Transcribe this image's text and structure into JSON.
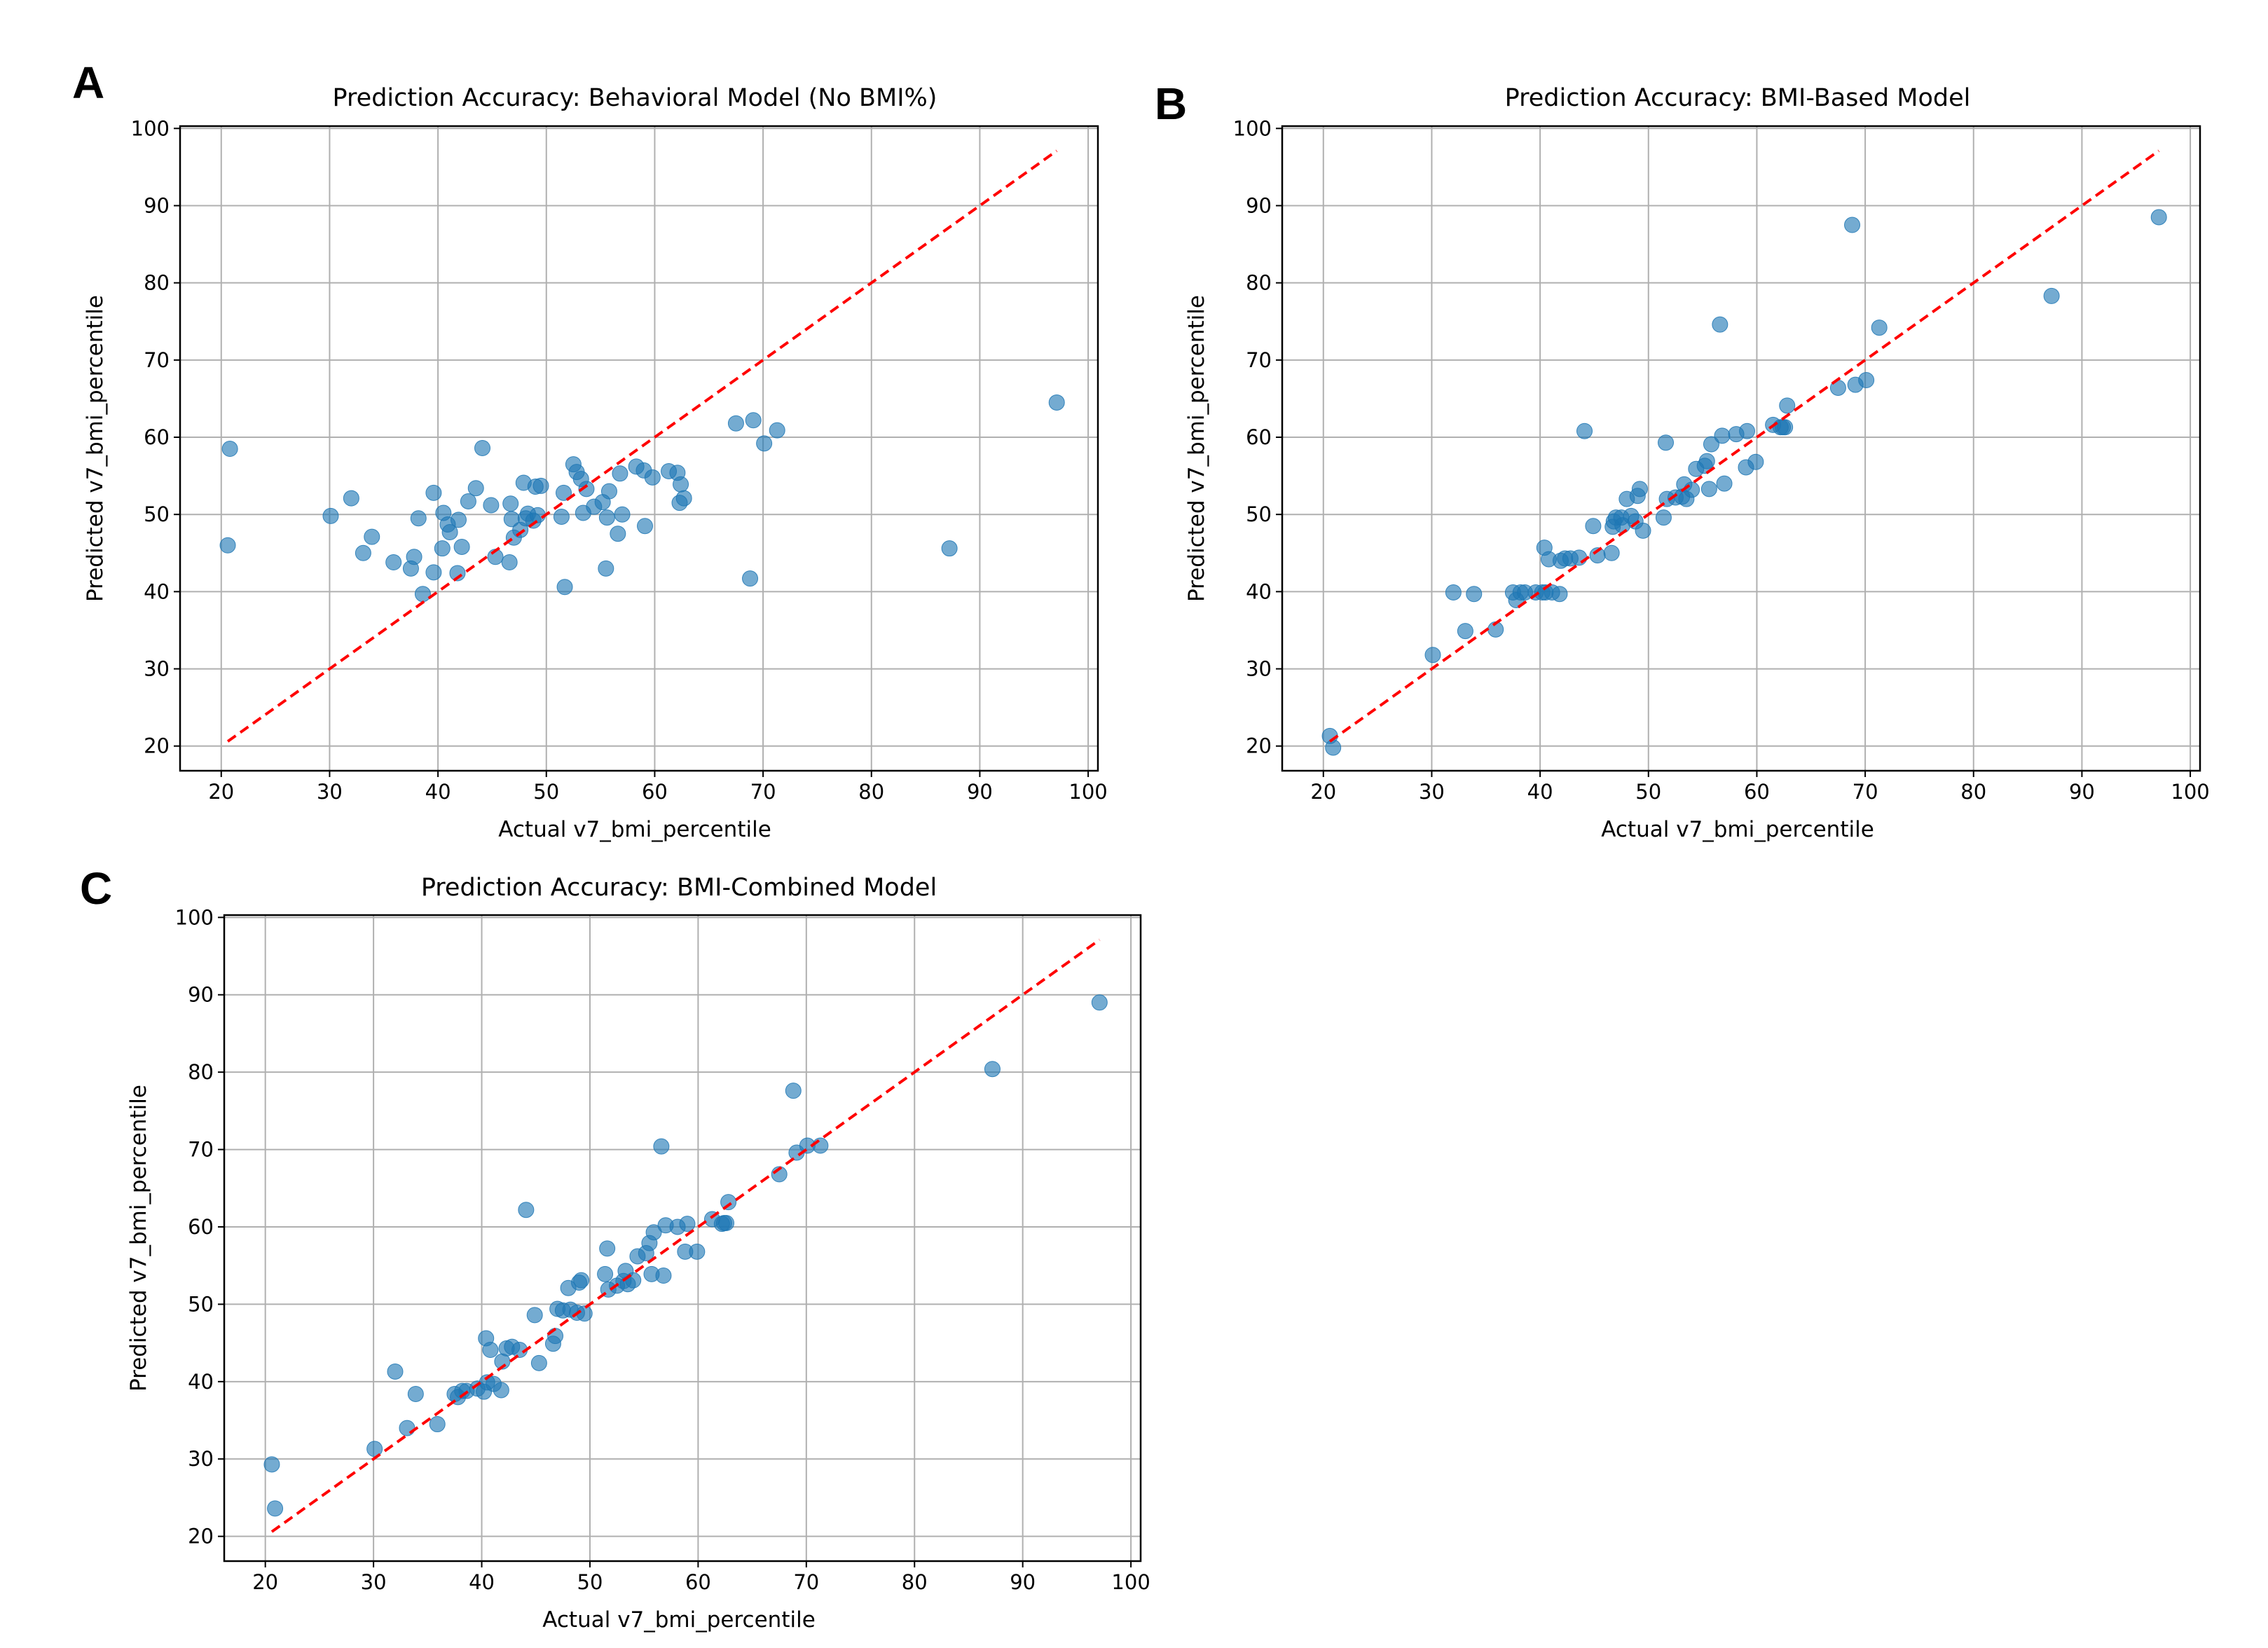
{
  "figure": {
    "panels": [
      {
        "letter": "A"
      },
      {
        "letter": "B"
      },
      {
        "letter": "C"
      }
    ]
  },
  "chart_data": [
    {
      "type": "scatter",
      "title": "Prediction Accuracy: Behavioral Model (No BMI%)",
      "xlabel": "Actual v7_bmi_percentile",
      "ylabel": "Predicted v7_bmi_percentile",
      "xlim": [
        16.2,
        100.9
      ],
      "ylim": [
        16.8,
        100.3
      ],
      "xticks": [
        20,
        30,
        40,
        50,
        60,
        70,
        80,
        90,
        100
      ],
      "yticks": [
        20,
        30,
        40,
        50,
        60,
        70,
        80,
        90,
        100
      ],
      "grid": true,
      "reference_line": {
        "style": "dashed",
        "color": "#ff0000",
        "from": [
          20.6,
          20.6
        ],
        "to": [
          97.1,
          97.1
        ]
      },
      "series": [
        {
          "color": "#1f77b4",
          "points": [
            [
              20.6,
              46.0
            ],
            [
              20.8,
              58.5
            ],
            [
              30.1,
              49.8
            ],
            [
              32.0,
              52.1
            ],
            [
              33.1,
              45.0
            ],
            [
              33.9,
              47.1
            ],
            [
              35.9,
              43.8
            ],
            [
              37.5,
              43.0
            ],
            [
              37.8,
              44.5
            ],
            [
              38.2,
              49.5
            ],
            [
              38.6,
              39.7
            ],
            [
              39.6,
              42.5
            ],
            [
              39.6,
              52.8
            ],
            [
              40.4,
              45.6
            ],
            [
              40.5,
              50.2
            ],
            [
              40.9,
              48.7
            ],
            [
              41.1,
              47.7
            ],
            [
              41.8,
              42.4
            ],
            [
              41.9,
              49.3
            ],
            [
              42.2,
              45.8
            ],
            [
              42.8,
              51.7
            ],
            [
              43.5,
              53.4
            ],
            [
              44.1,
              58.6
            ],
            [
              44.9,
              51.2
            ],
            [
              45.3,
              44.5
            ],
            [
              46.6,
              43.8
            ],
            [
              46.7,
              51.4
            ],
            [
              46.8,
              49.4
            ],
            [
              47.0,
              47.0
            ],
            [
              47.6,
              48.0
            ],
            [
              47.9,
              54.1
            ],
            [
              48.1,
              49.5
            ],
            [
              48.3,
              50.1
            ],
            [
              48.8,
              49.2
            ],
            [
              49.0,
              53.6
            ],
            [
              49.2,
              49.9
            ],
            [
              49.5,
              53.7
            ],
            [
              51.4,
              49.7
            ],
            [
              51.6,
              52.8
            ],
            [
              51.7,
              40.6
            ],
            [
              52.5,
              56.5
            ],
            [
              52.8,
              55.5
            ],
            [
              53.2,
              54.6
            ],
            [
              53.4,
              50.2
            ],
            [
              53.7,
              53.3
            ],
            [
              54.4,
              51.0
            ],
            [
              55.2,
              51.6
            ],
            [
              55.5,
              43.0
            ],
            [
              55.6,
              49.6
            ],
            [
              55.8,
              53.0
            ],
            [
              56.6,
              47.5
            ],
            [
              56.8,
              55.3
            ],
            [
              57.0,
              50.0
            ],
            [
              58.3,
              56.2
            ],
            [
              59.0,
              55.7
            ],
            [
              59.1,
              48.5
            ],
            [
              59.8,
              54.8
            ],
            [
              61.3,
              55.6
            ],
            [
              62.1,
              55.4
            ],
            [
              62.3,
              51.5
            ],
            [
              62.4,
              53.9
            ],
            [
              62.7,
              52.1
            ],
            [
              67.5,
              61.8
            ],
            [
              68.8,
              41.7
            ],
            [
              69.1,
              62.2
            ],
            [
              70.1,
              59.2
            ],
            [
              71.3,
              60.9
            ],
            [
              87.2,
              45.6
            ],
            [
              97.1,
              64.5
            ]
          ]
        }
      ]
    },
    {
      "type": "scatter",
      "title": "Prediction Accuracy: BMI-Based Model",
      "xlabel": "Actual v7_bmi_percentile",
      "ylabel": "Predicted v7_bmi_percentile",
      "xlim": [
        16.2,
        100.9
      ],
      "ylim": [
        16.8,
        100.3
      ],
      "xticks": [
        20,
        30,
        40,
        50,
        60,
        70,
        80,
        90,
        100
      ],
      "yticks": [
        20,
        30,
        40,
        50,
        60,
        70,
        80,
        90,
        100
      ],
      "grid": true,
      "reference_line": {
        "style": "dashed",
        "color": "#ff0000",
        "from": [
          20.6,
          20.6
        ],
        "to": [
          97.1,
          97.1
        ]
      },
      "series": [
        {
          "color": "#1f77b4",
          "points": [
            [
              20.6,
              21.3
            ],
            [
              20.9,
              19.8
            ],
            [
              30.1,
              31.8
            ],
            [
              32.0,
              39.9
            ],
            [
              33.1,
              34.9
            ],
            [
              33.9,
              39.7
            ],
            [
              35.9,
              35.1
            ],
            [
              37.5,
              39.9
            ],
            [
              37.8,
              38.9
            ],
            [
              38.2,
              39.9
            ],
            [
              38.6,
              39.9
            ],
            [
              39.6,
              39.9
            ],
            [
              40.2,
              39.9
            ],
            [
              40.4,
              45.7
            ],
            [
              40.5,
              39.9
            ],
            [
              40.8,
              44.2
            ],
            [
              41.1,
              39.9
            ],
            [
              41.8,
              39.7
            ],
            [
              41.9,
              44.0
            ],
            [
              42.3,
              44.3
            ],
            [
              42.8,
              44.3
            ],
            [
              43.6,
              44.4
            ],
            [
              44.1,
              60.8
            ],
            [
              44.9,
              48.5
            ],
            [
              45.3,
              44.7
            ],
            [
              46.6,
              45.0
            ],
            [
              46.7,
              48.4
            ],
            [
              46.8,
              49.1
            ],
            [
              47.0,
              49.6
            ],
            [
              47.5,
              49.6
            ],
            [
              47.6,
              48.6
            ],
            [
              48.0,
              52.0
            ],
            [
              48.4,
              49.8
            ],
            [
              48.8,
              49.1
            ],
            [
              49.0,
              52.4
            ],
            [
              49.2,
              53.3
            ],
            [
              49.5,
              47.9
            ],
            [
              51.4,
              49.6
            ],
            [
              51.6,
              59.3
            ],
            [
              51.7,
              52.0
            ],
            [
              52.5,
              52.2
            ],
            [
              53.1,
              52.3
            ],
            [
              53.3,
              53.9
            ],
            [
              53.5,
              52.0
            ],
            [
              54.0,
              53.2
            ],
            [
              54.4,
              55.9
            ],
            [
              55.2,
              56.3
            ],
            [
              55.4,
              56.9
            ],
            [
              55.6,
              53.3
            ],
            [
              55.8,
              59.1
            ],
            [
              56.6,
              74.6
            ],
            [
              56.8,
              60.2
            ],
            [
              57.0,
              54.0
            ],
            [
              58.1,
              60.4
            ],
            [
              59.0,
              56.1
            ],
            [
              59.1,
              60.8
            ],
            [
              59.9,
              56.8
            ],
            [
              61.5,
              61.6
            ],
            [
              62.2,
              61.3
            ],
            [
              62.4,
              61.3
            ],
            [
              62.6,
              61.3
            ],
            [
              62.8,
              64.1
            ],
            [
              67.5,
              66.4
            ],
            [
              68.8,
              87.5
            ],
            [
              69.1,
              66.8
            ],
            [
              70.1,
              67.4
            ],
            [
              71.3,
              74.2
            ],
            [
              87.2,
              78.3
            ],
            [
              97.1,
              88.5
            ]
          ]
        }
      ]
    },
    {
      "type": "scatter",
      "title": "Prediction Accuracy: BMI-Combined Model",
      "xlabel": "Actual v7_bmi_percentile",
      "ylabel": "Predicted v7_bmi_percentile",
      "xlim": [
        16.2,
        100.9
      ],
      "ylim": [
        16.8,
        100.3
      ],
      "xticks": [
        20,
        30,
        40,
        50,
        60,
        70,
        80,
        90,
        100
      ],
      "yticks": [
        20,
        30,
        40,
        50,
        60,
        70,
        80,
        90,
        100
      ],
      "grid": true,
      "reference_line": {
        "style": "dashed",
        "color": "#ff0000",
        "from": [
          20.6,
          20.6
        ],
        "to": [
          97.1,
          97.1
        ]
      },
      "series": [
        {
          "color": "#1f77b4",
          "points": [
            [
              20.6,
              29.3
            ],
            [
              20.9,
              23.6
            ],
            [
              30.1,
              31.3
            ],
            [
              32.0,
              41.3
            ],
            [
              33.1,
              34.0
            ],
            [
              33.9,
              38.4
            ],
            [
              35.9,
              34.5
            ],
            [
              37.5,
              38.4
            ],
            [
              37.8,
              38.0
            ],
            [
              38.2,
              38.8
            ],
            [
              38.6,
              38.8
            ],
            [
              39.6,
              39.1
            ],
            [
              40.2,
              38.7
            ],
            [
              40.4,
              45.6
            ],
            [
              40.5,
              39.9
            ],
            [
              40.8,
              44.1
            ],
            [
              41.1,
              39.7
            ],
            [
              41.8,
              38.9
            ],
            [
              41.9,
              42.6
            ],
            [
              42.3,
              44.3
            ],
            [
              42.8,
              44.5
            ],
            [
              43.5,
              44.1
            ],
            [
              44.1,
              62.2
            ],
            [
              44.9,
              48.6
            ],
            [
              45.3,
              42.4
            ],
            [
              46.6,
              44.9
            ],
            [
              46.8,
              45.9
            ],
            [
              47.0,
              49.4
            ],
            [
              47.5,
              49.2
            ],
            [
              48.0,
              52.1
            ],
            [
              48.2,
              49.3
            ],
            [
              48.8,
              48.9
            ],
            [
              49.0,
              52.8
            ],
            [
              49.2,
              53.1
            ],
            [
              49.5,
              48.8
            ],
            [
              51.4,
              53.9
            ],
            [
              51.6,
              57.2
            ],
            [
              51.7,
              51.9
            ],
            [
              52.5,
              52.4
            ],
            [
              53.1,
              53.0
            ],
            [
              53.3,
              54.3
            ],
            [
              53.5,
              52.6
            ],
            [
              54.0,
              53.1
            ],
            [
              54.4,
              56.2
            ],
            [
              55.2,
              56.6
            ],
            [
              55.5,
              57.9
            ],
            [
              55.7,
              53.9
            ],
            [
              55.9,
              59.3
            ],
            [
              56.6,
              70.4
            ],
            [
              56.8,
              53.7
            ],
            [
              57.0,
              60.2
            ],
            [
              58.1,
              60.0
            ],
            [
              58.8,
              56.8
            ],
            [
              59.0,
              60.4
            ],
            [
              59.9,
              56.8
            ],
            [
              61.3,
              61.0
            ],
            [
              62.2,
              60.4
            ],
            [
              62.4,
              60.5
            ],
            [
              62.6,
              60.5
            ],
            [
              62.8,
              63.2
            ],
            [
              67.5,
              66.8
            ],
            [
              68.8,
              77.6
            ],
            [
              69.1,
              69.6
            ],
            [
              70.1,
              70.5
            ],
            [
              71.3,
              70.5
            ],
            [
              87.2,
              80.4
            ],
            [
              97.1,
              89.0
            ]
          ]
        }
      ]
    }
  ]
}
